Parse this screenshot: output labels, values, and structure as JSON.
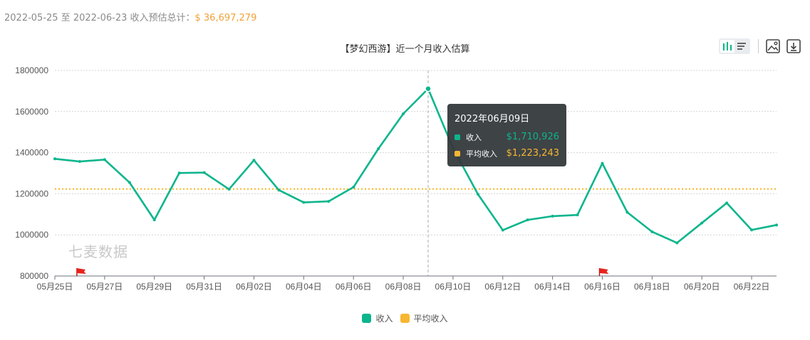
{
  "summary": {
    "label": "2022-05-25 至 2022-06-23 收入预估总计：",
    "amount": "$ 36,697,279"
  },
  "toolbar": {
    "chart_icon": "bar-chart-icon",
    "list_icon": "list-icon",
    "image_icon": "image-icon",
    "download_icon": "download-icon"
  },
  "watermark": "七麦数据",
  "tooltip": {
    "date": "2022年06月09日",
    "rows": [
      {
        "label": "收入",
        "value": "$1,710,926"
      },
      {
        "label": "平均收入",
        "value": "$1,223,243"
      }
    ]
  },
  "colors": {
    "revenue": "#0cb58c",
    "average": "#f7b731",
    "grid": "#d4d4d4",
    "flag": "#e8221c"
  },
  "chart_data": {
    "type": "line",
    "title": "【梦幻西游】近一个月收入估算",
    "x": [
      "05-25",
      "05-26",
      "05-27",
      "05-28",
      "05-29",
      "05-30",
      "05-31",
      "06-01",
      "06-02",
      "06-03",
      "06-04",
      "06-05",
      "06-06",
      "06-07",
      "06-08",
      "06-09",
      "06-10",
      "06-11",
      "06-12",
      "06-13",
      "06-14",
      "06-15",
      "06-16",
      "06-17",
      "06-18",
      "06-19",
      "06-20",
      "06-21",
      "06-22",
      "06-23"
    ],
    "x_tick_labels": [
      "05月25日",
      "05月27日",
      "05月29日",
      "05月31日",
      "06月02日",
      "06月04日",
      "06月06日",
      "06月08日",
      "06月10日",
      "06月12日",
      "06月14日",
      "06月16日",
      "06月18日",
      "06月20日",
      "06月22日"
    ],
    "series": [
      {
        "name": "收入",
        "values": [
          1370000,
          1357000,
          1366000,
          1255000,
          1073000,
          1301000,
          1303000,
          1222000,
          1363000,
          1218000,
          1158000,
          1163000,
          1232000,
          1419000,
          1589000,
          1710926,
          1422000,
          1198000,
          1023000,
          1073000,
          1091000,
          1097000,
          1348000,
          1110000,
          1015000,
          961000,
          1058000,
          1155000,
          1024000,
          1048000
        ]
      },
      {
        "name": "平均收入",
        "values": [
          1223243,
          1223243,
          1223243,
          1223243,
          1223243,
          1223243,
          1223243,
          1223243,
          1223243,
          1223243,
          1223243,
          1223243,
          1223243,
          1223243,
          1223243,
          1223243,
          1223243,
          1223243,
          1223243,
          1223243,
          1223243,
          1223243,
          1223243,
          1223243,
          1223243,
          1223243,
          1223243,
          1223243,
          1223243,
          1223243
        ]
      }
    ],
    "ylim": [
      800000,
      1800000
    ],
    "yticks": [
      800000,
      1000000,
      1200000,
      1400000,
      1600000,
      1800000
    ],
    "grid": true,
    "legend": "bottom-center",
    "flags": [
      "05-26",
      "06-16"
    ],
    "highlight": "06-09"
  }
}
